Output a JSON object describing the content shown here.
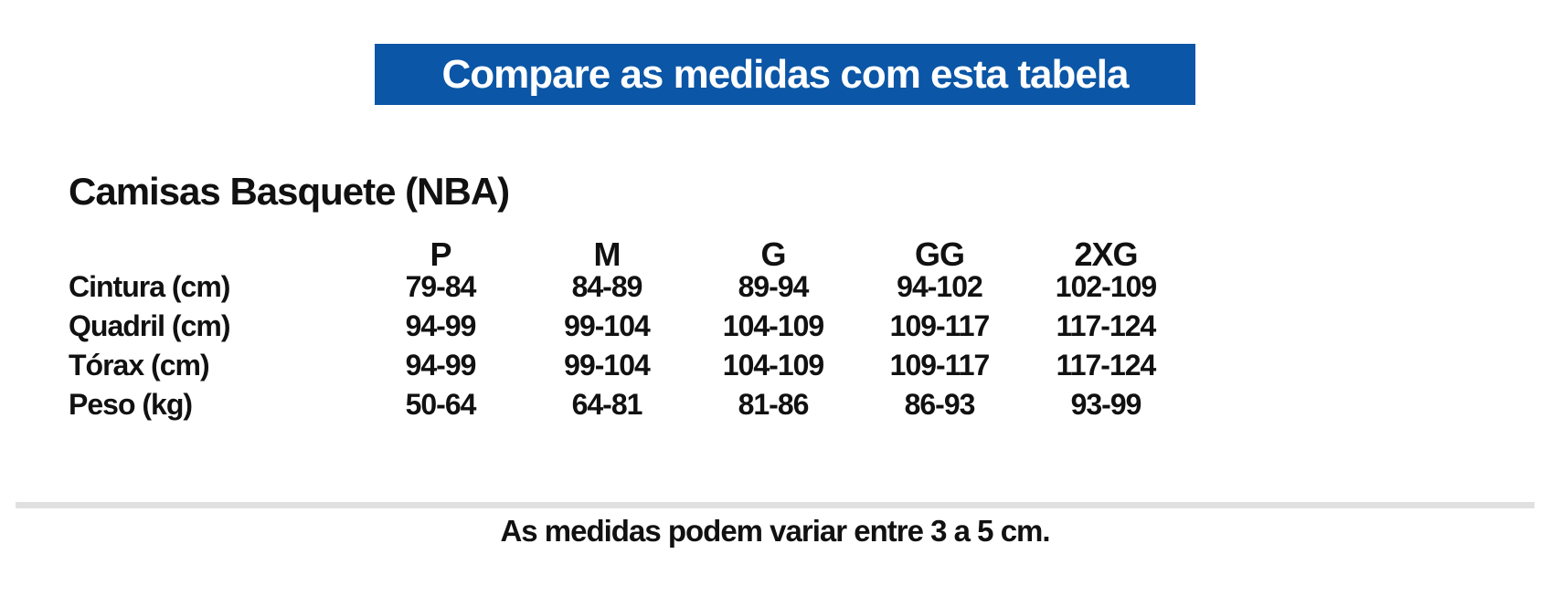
{
  "banner": {
    "label": "Compare as medidas com esta tabela",
    "bg_color": "#0B56A6",
    "text_color": "#FFFFFF"
  },
  "section_title": "Camisas Basquete (NBA)",
  "size_table": {
    "columns": [
      "P",
      "M",
      "G",
      "GG",
      "2XG"
    ],
    "rows": [
      {
        "label": "Cintura (cm)",
        "values": [
          "79-84",
          "84-89",
          "89-94",
          "94-102",
          "102-109"
        ]
      },
      {
        "label": "Quadril (cm)",
        "values": [
          "94-99",
          "99-104",
          "104-109",
          "109-117",
          "117-124"
        ]
      },
      {
        "label": "Tórax (cm)",
        "values": [
          "94-99",
          "99-104",
          "104-109",
          "109-117",
          "117-124"
        ]
      },
      {
        "label": "Peso (kg)",
        "values": [
          "50-64",
          "64-81",
          "81-86",
          "86-93",
          "93-99"
        ]
      }
    ]
  },
  "footer_note": "As medidas podem variar entre 3 a 5 cm.",
  "colors": {
    "text": "#111111",
    "divider": "#E0E0E0"
  }
}
